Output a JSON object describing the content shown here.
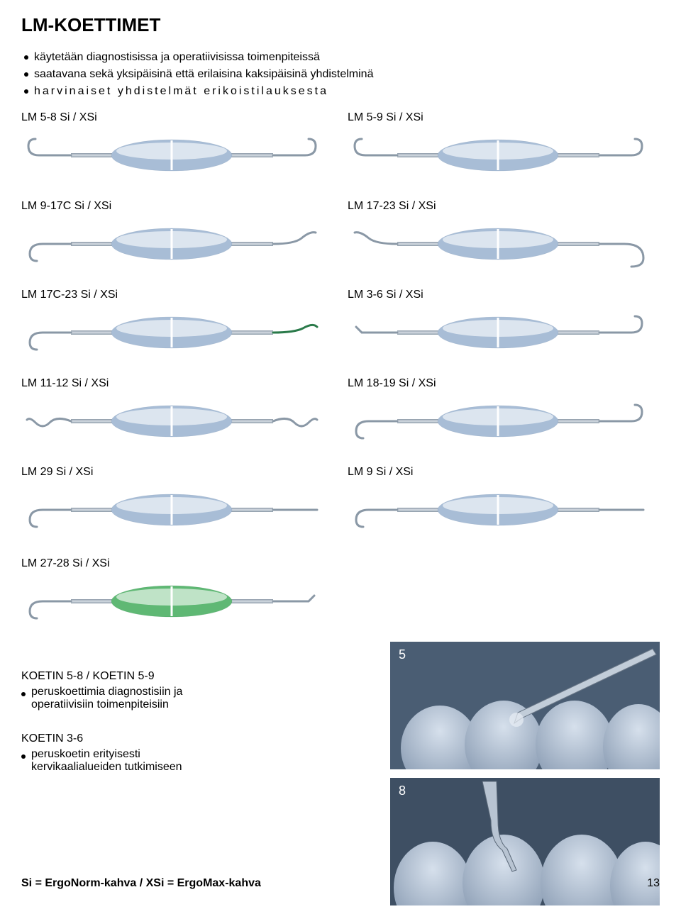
{
  "title": "LM-KOETTIMET",
  "bullets": [
    {
      "text": "käytetään diagnostisissa ja operatiivisissa toimenpiteissä",
      "spaced": false
    },
    {
      "text": "saatavana sekä yksipäisinä että erilaisina kaksipäisinä yhdistelminä",
      "spaced": false
    },
    {
      "text": "harvinaiset yhdistelmät erikoistilauksesta",
      "spaced": true
    }
  ],
  "instruments": {
    "row1": {
      "left": "LM 5-8 Si / XSi",
      "right": "LM 5-9 Si / XSi",
      "left_color": "#a8bdd6",
      "right_color": "#a8bdd6",
      "left_tip1": "hook",
      "left_tip2": "hook",
      "right_tip1": "hook",
      "right_tip2": "hook"
    },
    "row2": {
      "left": "LM 9-17C Si / XSi",
      "right": "LM 17-23 Si / XSi",
      "left_color": "#a8bdd6",
      "right_color": "#a8bdd6",
      "left_tip1": "hook-down",
      "left_tip2": "curve",
      "right_tip1": "curve",
      "right_tip2": "hook-big"
    },
    "row3": {
      "left": "LM 17C-23 Si / XSi",
      "right": "LM 3-6 Si / XSi",
      "left_color": "#a8bdd6",
      "right_color": "#a8bdd6",
      "left_tip1": "hook-down",
      "left_tip2": "curve-green",
      "right_tip1": "probe",
      "right_tip2": "hook"
    },
    "row4": {
      "left": "LM 11-12 Si / XSi",
      "right": "LM 18-19 Si / XSi",
      "left_color": "#a8bdd6",
      "right_color": "#a8bdd6",
      "left_tip1": "wave",
      "left_tip2": "wave",
      "right_tip1": "hook-down",
      "right_tip2": "hook"
    },
    "row5": {
      "left": "LM 29 Si / XSi",
      "right": "LM 9 Si / XSi",
      "left_color": "#a8bdd6",
      "right_color": "#a8bdd6",
      "left_tip1": "hook-down",
      "left_tip2": "rod",
      "right_tip1": "hook-down",
      "right_tip2": "rod"
    },
    "single": {
      "label": "LM 27-28 Si / XSi",
      "color": "#5fb874",
      "tip1": "hook-down",
      "tip2": "probe"
    }
  },
  "koetin": {
    "block1": {
      "title": "KOETIN 5-8 / KOETIN 5-9",
      "lines": [
        "peruskoettimia diagnostisiin ja",
        "operatiivisiin toimenpiteisiin"
      ]
    },
    "block2": {
      "title": "KOETIN 3-6",
      "lines": [
        "peruskoetin erityisesti",
        "kervikaalialueiden tutkimiseen"
      ]
    }
  },
  "photos": {
    "top_num": "5",
    "bottom_num": "8"
  },
  "footer": {
    "left": "Si = ErgoNorm-kahva   /   XSi = ErgoMax-kahva",
    "page": "13"
  },
  "colors": {
    "handle_light": "#c9d8e8",
    "handle_shadow": "#7a94b2",
    "handle_green_light": "#8ed9a0",
    "handle_green_shadow": "#3a8c52",
    "metal": "#8a98a6",
    "metal_light": "#d6dde4",
    "photo_bg": "#6b7e94",
    "tooth": "#b8c5d4"
  }
}
